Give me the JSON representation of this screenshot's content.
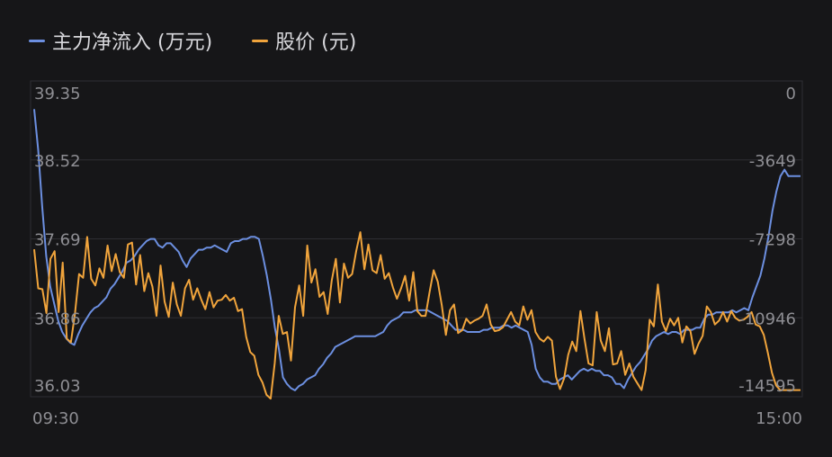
{
  "chart_data": {
    "type": "line",
    "x_start_label": "09:30",
    "x_end_label": "15:00",
    "left_axis": {
      "ticks": [
        39.35,
        38.52,
        37.69,
        36.86,
        36.03
      ],
      "tick_labels": [
        "39.35",
        "38.52",
        "37.69",
        "36.86",
        "36.03"
      ],
      "ylim": [
        36.03,
        39.35
      ]
    },
    "right_axis": {
      "ticks": [
        0,
        -3649,
        -7298,
        -10946,
        -14595
      ],
      "tick_labels": [
        "0",
        "-3649",
        "-7298",
        "-10946",
        "-14595"
      ],
      "ylim": [
        -14595,
        0
      ]
    },
    "grid": true,
    "legend_position": "top-left",
    "series": [
      {
        "name": "主力净流入 (万元)",
        "axis": "right",
        "color": "#6c8fe0",
        "values": [
          -1300,
          -3200,
          -5800,
          -8100,
          -9500,
          -10300,
          -11100,
          -11600,
          -11900,
          -12100,
          -12200,
          -11700,
          -11300,
          -11000,
          -10700,
          -10500,
          -10400,
          -10200,
          -10000,
          -9600,
          -9400,
          -9100,
          -8800,
          -8400,
          -8300,
          -8100,
          -7800,
          -7600,
          -7400,
          -7300,
          -7300,
          -7600,
          -7700,
          -7500,
          -7500,
          -7700,
          -7900,
          -8300,
          -8600,
          -8200,
          -8000,
          -7800,
          -7800,
          -7700,
          -7700,
          -7600,
          -7700,
          -7800,
          -7900,
          -7500,
          -7400,
          -7400,
          -7300,
          -7300,
          -7200,
          -7200,
          -7300,
          -8100,
          -9000,
          -10100,
          -11400,
          -12400,
          -13700,
          -14000,
          -14200,
          -14300,
          -14100,
          -14000,
          -13800,
          -13700,
          -13600,
          -13300,
          -13100,
          -12800,
          -12600,
          -12300,
          -12200,
          -12100,
          -12000,
          -11900,
          -11800,
          -11800,
          -11800,
          -11800,
          -11800,
          -11800,
          -11700,
          -11600,
          -11300,
          -11100,
          -11000,
          -10900,
          -10700,
          -10700,
          -10700,
          -10600,
          -10600,
          -10600,
          -10600,
          -10700,
          -10800,
          -10900,
          -11000,
          -11100,
          -11300,
          -11500,
          -11500,
          -11500,
          -11600,
          -11600,
          -11600,
          -11600,
          -11500,
          -11500,
          -11400,
          -11400,
          -11400,
          -11300,
          -11300,
          -11400,
          -11300,
          -11400,
          -11500,
          -11600,
          -12200,
          -13300,
          -13700,
          -13900,
          -13900,
          -14000,
          -14000,
          -13800,
          -13700,
          -13600,
          -13800,
          -13600,
          -13400,
          -13300,
          -13400,
          -13300,
          -13400,
          -13400,
          -13600,
          -13600,
          -13700,
          -14000,
          -14000,
          -14200,
          -13800,
          -13500,
          -13200,
          -13000,
          -12700,
          -12400,
          -12000,
          -11800,
          -11700,
          -11600,
          -11700,
          -11600,
          -11600,
          -11700,
          -11500,
          -11500,
          -11500,
          -11400,
          -11400,
          -11000,
          -10800,
          -10800,
          -10700,
          -10700,
          -10700,
          -10700,
          -10600,
          -10700,
          -10600,
          -10500,
          -10600,
          -10000,
          -9500,
          -9000,
          -8200,
          -7200,
          -6000,
          -5100,
          -4400,
          -4100,
          -4400,
          -4400,
          -4400,
          -4400
        ]
      },
      {
        "name": "股价 (元)",
        "axis": "left",
        "color": "#f0a43c",
        "values": [
          37.58,
          37.17,
          37.16,
          36.91,
          37.48,
          37.56,
          36.92,
          37.44,
          36.64,
          36.6,
          36.9,
          37.32,
          37.28,
          37.71,
          37.27,
          37.2,
          37.38,
          37.28,
          37.62,
          37.35,
          37.53,
          37.34,
          37.28,
          37.63,
          37.65,
          37.21,
          37.52,
          37.14,
          37.33,
          37.19,
          36.88,
          37.41,
          37.03,
          36.87,
          37.23,
          37.0,
          36.88,
          37.17,
          37.26,
          37.05,
          37.17,
          37.05,
          36.95,
          37.13,
          36.97,
          37.04,
          37.05,
          37.1,
          37.04,
          37.07,
          36.93,
          36.95,
          36.66,
          36.5,
          36.46,
          36.26,
          36.18,
          36.05,
          36.01,
          36.38,
          36.88,
          36.69,
          36.71,
          36.41,
          36.97,
          37.2,
          36.88,
          37.62,
          37.23,
          37.37,
          37.08,
          37.13,
          36.9,
          37.25,
          37.48,
          37.02,
          37.43,
          37.28,
          37.32,
          37.56,
          37.76,
          37.37,
          37.63,
          37.36,
          37.33,
          37.52,
          37.27,
          37.33,
          37.18,
          37.06,
          37.17,
          37.3,
          37.04,
          37.34,
          36.93,
          36.88,
          36.88,
          37.13,
          37.36,
          37.24,
          36.99,
          36.68,
          36.94,
          37.0,
          36.7,
          36.73,
          36.85,
          36.8,
          36.83,
          36.85,
          36.88,
          37.0,
          36.79,
          36.72,
          36.73,
          36.76,
          36.84,
          36.92,
          36.82,
          36.78,
          36.98,
          36.84,
          36.94,
          36.71,
          36.64,
          36.61,
          36.66,
          36.62,
          36.24,
          36.11,
          36.22,
          36.47,
          36.61,
          36.51,
          36.93,
          36.64,
          36.38,
          36.36,
          36.92,
          36.62,
          36.51,
          36.75,
          36.37,
          36.38,
          36.51,
          36.26,
          36.38,
          36.24,
          36.17,
          36.1,
          36.31,
          36.84,
          36.77,
          37.21,
          36.82,
          36.72,
          36.85,
          36.78,
          36.86,
          36.6,
          36.77,
          36.72,
          36.48,
          36.59,
          36.67,
          36.98,
          36.92,
          36.79,
          36.83,
          36.92,
          36.82,
          36.93,
          36.86,
          36.83,
          36.84,
          36.87,
          36.92,
          36.79,
          36.77,
          36.68,
          36.49,
          36.28,
          36.15,
          36.1,
          36.1,
          36.1,
          36.1,
          36.1,
          36.1
        ]
      }
    ]
  }
}
